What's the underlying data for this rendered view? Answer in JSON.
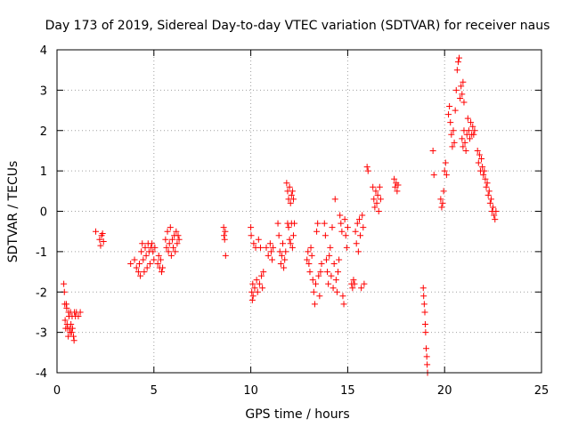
{
  "chart_data": {
    "type": "scatter",
    "title": "Day 173 of 2019, Sidereal Day-to-day VTEC variation (SDTVAR) for receiver naus",
    "xlabel": "GPS time / hours",
    "ylabel": "SDTVAR / TECUs",
    "xlim": [
      0,
      25
    ],
    "ylim": [
      -4,
      4
    ],
    "xticks": [
      0,
      5,
      10,
      15,
      20,
      25
    ],
    "yticks": [
      -4,
      -3,
      -2,
      -1,
      0,
      1,
      2,
      3,
      4
    ],
    "grid": true,
    "marker": "+",
    "color": "#ff0000",
    "series": [
      {
        "name": "SDTVAR",
        "points": [
          [
            0.35,
            -1.8
          ],
          [
            0.38,
            -2.0
          ],
          [
            0.4,
            -2.3
          ],
          [
            0.42,
            -2.7
          ],
          [
            0.45,
            -2.9
          ],
          [
            0.48,
            -2.3
          ],
          [
            0.5,
            -2.4
          ],
          [
            0.52,
            -2.8
          ],
          [
            0.55,
            -2.9
          ],
          [
            0.58,
            -3.1
          ],
          [
            0.6,
            -2.5
          ],
          [
            0.62,
            -2.6
          ],
          [
            0.65,
            -2.9
          ],
          [
            0.68,
            -3.0
          ],
          [
            0.7,
            -2.5
          ],
          [
            0.72,
            -2.8
          ],
          [
            0.75,
            -3.0
          ],
          [
            0.78,
            -2.6
          ],
          [
            0.8,
            -2.9
          ],
          [
            0.85,
            -3.1
          ],
          [
            0.88,
            -3.2
          ],
          [
            0.9,
            -2.5
          ],
          [
            0.95,
            -2.6
          ],
          [
            1.0,
            -2.5
          ],
          [
            1.1,
            -2.6
          ],
          [
            1.2,
            -2.5
          ],
          [
            2.0,
            -0.5
          ],
          [
            2.2,
            -0.7
          ],
          [
            2.25,
            -0.85
          ],
          [
            2.3,
            -0.6
          ],
          [
            2.35,
            -0.55
          ],
          [
            2.4,
            -0.75
          ],
          [
            3.8,
            -1.3
          ],
          [
            4.0,
            -1.2
          ],
          [
            4.1,
            -1.4
          ],
          [
            4.2,
            -1.5
          ],
          [
            4.25,
            -1.3
          ],
          [
            4.3,
            -1.6
          ],
          [
            4.35,
            -1.0
          ],
          [
            4.4,
            -0.8
          ],
          [
            4.45,
            -1.2
          ],
          [
            4.5,
            -1.5
          ],
          [
            4.55,
            -0.9
          ],
          [
            4.6,
            -1.1
          ],
          [
            4.65,
            -1.4
          ],
          [
            4.7,
            -0.8
          ],
          [
            4.75,
            -1.0
          ],
          [
            4.8,
            -1.3
          ],
          [
            4.85,
            -0.9
          ],
          [
            4.9,
            -0.8
          ],
          [
            4.95,
            -1.0
          ],
          [
            5.0,
            -1.2
          ],
          [
            5.05,
            -0.9
          ],
          [
            5.2,
            -1.3
          ],
          [
            5.25,
            -1.1
          ],
          [
            5.3,
            -1.4
          ],
          [
            5.35,
            -1.2
          ],
          [
            5.4,
            -1.5
          ],
          [
            5.45,
            -1.4
          ],
          [
            5.6,
            -0.7
          ],
          [
            5.65,
            -0.9
          ],
          [
            5.7,
            -0.5
          ],
          [
            5.75,
            -1.0
          ],
          [
            5.8,
            -0.8
          ],
          [
            5.85,
            -0.4
          ],
          [
            5.9,
            -1.1
          ],
          [
            5.95,
            -0.7
          ],
          [
            6.0,
            -0.9
          ],
          [
            6.05,
            -0.6
          ],
          [
            6.1,
            -1.0
          ],
          [
            6.15,
            -0.5
          ],
          [
            6.2,
            -0.8
          ],
          [
            6.25,
            -0.6
          ],
          [
            6.3,
            -0.7
          ],
          [
            8.6,
            -0.4
          ],
          [
            8.62,
            -0.6
          ],
          [
            8.65,
            -0.7
          ],
          [
            8.68,
            -0.5
          ],
          [
            8.7,
            -1.1
          ],
          [
            10.0,
            -0.4
          ],
          [
            10.02,
            -0.6
          ],
          [
            10.05,
            -2.0
          ],
          [
            10.08,
            -2.2
          ],
          [
            10.1,
            -1.8
          ],
          [
            10.12,
            -2.1
          ],
          [
            10.15,
            -0.8
          ],
          [
            10.2,
            -1.9
          ],
          [
            10.25,
            -0.9
          ],
          [
            10.3,
            -1.7
          ],
          [
            10.35,
            -2.0
          ],
          [
            10.4,
            -0.7
          ],
          [
            10.45,
            -1.8
          ],
          [
            10.5,
            -0.9
          ],
          [
            10.55,
            -1.6
          ],
          [
            10.6,
            -1.9
          ],
          [
            10.65,
            -1.5
          ],
          [
            10.8,
            -0.9
          ],
          [
            10.9,
            -1.1
          ],
          [
            11.0,
            -0.8
          ],
          [
            11.05,
            -1.0
          ],
          [
            11.1,
            -1.2
          ],
          [
            11.15,
            -0.9
          ],
          [
            11.4,
            -0.3
          ],
          [
            11.45,
            -0.6
          ],
          [
            11.5,
            -1.0
          ],
          [
            11.55,
            -1.3
          ],
          [
            11.6,
            -1.1
          ],
          [
            11.65,
            -0.8
          ],
          [
            11.7,
            -1.4
          ],
          [
            11.75,
            -1.2
          ],
          [
            11.8,
            -1.0
          ],
          [
            11.85,
            0.7
          ],
          [
            11.9,
            0.5
          ],
          [
            11.95,
            0.3
          ],
          [
            12.0,
            0.6
          ],
          [
            12.05,
            0.2
          ],
          [
            12.1,
            0.4
          ],
          [
            12.15,
            0.5
          ],
          [
            12.2,
            0.3
          ],
          [
            11.9,
            -0.3
          ],
          [
            11.95,
            -0.4
          ],
          [
            12.0,
            -0.7
          ],
          [
            12.05,
            -0.8
          ],
          [
            12.1,
            -0.3
          ],
          [
            12.15,
            -0.9
          ],
          [
            12.2,
            -0.6
          ],
          [
            12.25,
            -0.3
          ],
          [
            12.9,
            -1.2
          ],
          [
            12.95,
            -1.0
          ],
          [
            13.0,
            -1.3
          ],
          [
            13.05,
            -1.5
          ],
          [
            13.1,
            -0.9
          ],
          [
            13.15,
            -1.1
          ],
          [
            13.2,
            -1.7
          ],
          [
            13.25,
            -2.0
          ],
          [
            13.3,
            -2.3
          ],
          [
            13.35,
            -1.8
          ],
          [
            13.4,
            -0.5
          ],
          [
            13.45,
            -0.3
          ],
          [
            13.5,
            -1.6
          ],
          [
            13.55,
            -2.1
          ],
          [
            13.6,
            -1.5
          ],
          [
            13.65,
            -1.3
          ],
          [
            13.8,
            -0.3
          ],
          [
            13.85,
            -0.6
          ],
          [
            13.9,
            -1.2
          ],
          [
            13.95,
            -1.5
          ],
          [
            14.0,
            -1.8
          ],
          [
            14.05,
            -1.1
          ],
          [
            14.1,
            -0.9
          ],
          [
            14.15,
            -1.6
          ],
          [
            14.2,
            -0.4
          ],
          [
            14.25,
            -1.9
          ],
          [
            14.3,
            -1.3
          ],
          [
            14.35,
            0.3
          ],
          [
            14.4,
            -1.7
          ],
          [
            14.45,
            -2.0
          ],
          [
            14.5,
            -1.5
          ],
          [
            14.55,
            -1.2
          ],
          [
            14.6,
            -0.1
          ],
          [
            14.65,
            -0.3
          ],
          [
            14.7,
            -0.5
          ],
          [
            14.75,
            -2.1
          ],
          [
            14.8,
            -2.3
          ],
          [
            14.85,
            -0.2
          ],
          [
            14.9,
            -0.6
          ],
          [
            14.95,
            -0.9
          ],
          [
            15.0,
            -0.4
          ],
          [
            15.2,
            -1.8
          ],
          [
            15.25,
            -1.9
          ],
          [
            15.3,
            -1.7
          ],
          [
            15.35,
            -1.8
          ],
          [
            15.4,
            -0.5
          ],
          [
            15.45,
            -0.8
          ],
          [
            15.5,
            -0.3
          ],
          [
            15.55,
            -1.0
          ],
          [
            15.6,
            -0.2
          ],
          [
            15.65,
            -0.6
          ],
          [
            15.7,
            -1.9
          ],
          [
            15.75,
            -0.1
          ],
          [
            15.8,
            -0.4
          ],
          [
            15.85,
            -1.8
          ],
          [
            16.0,
            1.1
          ],
          [
            16.05,
            1.0
          ],
          [
            16.3,
            0.6
          ],
          [
            16.35,
            0.3
          ],
          [
            16.4,
            0.1
          ],
          [
            16.45,
            0.5
          ],
          [
            16.5,
            0.2
          ],
          [
            16.55,
            0.4
          ],
          [
            16.6,
            0.0
          ],
          [
            16.65,
            0.6
          ],
          [
            16.7,
            0.3
          ],
          [
            17.4,
            0.8
          ],
          [
            17.45,
            0.6
          ],
          [
            17.5,
            0.7
          ],
          [
            17.55,
            0.5
          ],
          [
            17.6,
            0.65
          ],
          [
            18.9,
            -1.9
          ],
          [
            18.92,
            -2.1
          ],
          [
            18.95,
            -2.3
          ],
          [
            18.98,
            -2.5
          ],
          [
            19.0,
            -2.8
          ],
          [
            19.02,
            -3.0
          ],
          [
            19.05,
            -3.4
          ],
          [
            19.08,
            -3.6
          ],
          [
            19.1,
            -3.8
          ],
          [
            19.12,
            -4.0
          ],
          [
            19.4,
            1.5
          ],
          [
            19.45,
            0.9
          ],
          [
            19.8,
            0.3
          ],
          [
            19.85,
            0.1
          ],
          [
            19.9,
            0.2
          ],
          [
            19.95,
            0.5
          ],
          [
            20.0,
            1.0
          ],
          [
            20.05,
            1.2
          ],
          [
            20.1,
            0.9
          ],
          [
            20.2,
            2.4
          ],
          [
            20.25,
            2.6
          ],
          [
            20.3,
            2.2
          ],
          [
            20.35,
            1.9
          ],
          [
            20.4,
            1.6
          ],
          [
            20.45,
            2.0
          ],
          [
            20.5,
            1.7
          ],
          [
            20.55,
            2.5
          ],
          [
            20.6,
            3.0
          ],
          [
            20.65,
            3.5
          ],
          [
            20.7,
            3.7
          ],
          [
            20.75,
            3.8
          ],
          [
            20.8,
            2.8
          ],
          [
            20.85,
            3.1
          ],
          [
            20.9,
            2.9
          ],
          [
            20.95,
            3.2
          ],
          [
            21.0,
            2.7
          ],
          [
            20.9,
            1.8
          ],
          [
            20.95,
            1.6
          ],
          [
            21.0,
            2.0
          ],
          [
            21.05,
            1.7
          ],
          [
            21.1,
            1.5
          ],
          [
            21.15,
            1.9
          ],
          [
            21.2,
            2.3
          ],
          [
            21.25,
            2.0
          ],
          [
            21.3,
            1.8
          ],
          [
            21.35,
            2.2
          ],
          [
            21.4,
            1.9
          ],
          [
            21.45,
            2.1
          ],
          [
            21.5,
            1.9
          ],
          [
            21.55,
            2.0
          ],
          [
            21.7,
            1.5
          ],
          [
            21.75,
            1.2
          ],
          [
            21.8,
            1.4
          ],
          [
            21.85,
            1.0
          ],
          [
            21.9,
            1.3
          ],
          [
            21.95,
            1.1
          ],
          [
            22.0,
            0.9
          ],
          [
            22.05,
            1.0
          ],
          [
            22.1,
            0.8
          ],
          [
            22.15,
            0.6
          ],
          [
            22.2,
            0.7
          ],
          [
            22.25,
            0.4
          ],
          [
            22.3,
            0.5
          ],
          [
            22.35,
            0.2
          ],
          [
            22.4,
            0.3
          ],
          [
            22.45,
            0.0
          ],
          [
            22.5,
            0.1
          ],
          [
            22.55,
            -0.1
          ],
          [
            22.6,
            -0.2
          ],
          [
            22.65,
            0.0
          ]
        ]
      }
    ]
  }
}
